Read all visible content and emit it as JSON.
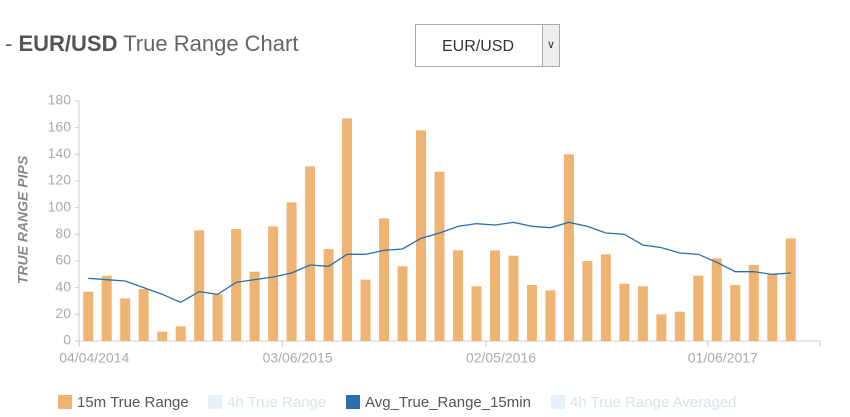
{
  "header": {
    "title_prefix": "-",
    "title_bold": "EUR/USD",
    "title_rest": "True Range Chart",
    "dropdown": "EUR/USD"
  },
  "chart_data": {
    "type": "bar-line",
    "y_label": "TRUE RANGE PIPS",
    "categories": [
      "04/04/2014",
      null,
      null,
      null,
      null,
      null,
      null,
      null,
      null,
      null,
      null,
      "03/06/2015",
      null,
      null,
      null,
      null,
      null,
      null,
      null,
      null,
      null,
      null,
      "02/05/2016",
      null,
      null,
      null,
      null,
      null,
      null,
      null,
      null,
      null,
      null,
      null,
      "01/06/2017",
      null,
      null,
      null,
      null
    ],
    "series": [
      {
        "name": "15m True Range",
        "type": "bar",
        "color": "#f0b472",
        "values": [
          37,
          49,
          32,
          39,
          7,
          11,
          83,
          35,
          84,
          52,
          86,
          104,
          131,
          69,
          167,
          46,
          92,
          56,
          158,
          127,
          68,
          41,
          68,
          64,
          42,
          38,
          140,
          60,
          65,
          43,
          41,
          20,
          22,
          49,
          62,
          42,
          57,
          50,
          77
        ]
      },
      {
        "name": "4h True Range",
        "type": "bar",
        "color": "#e8f1fa",
        "hidden": true
      },
      {
        "name": "Avg_True_Range_15min",
        "type": "line",
        "color": "#2a6fad",
        "values": [
          47,
          46,
          45,
          40,
          35,
          29,
          37,
          35,
          44,
          46,
          48,
          51,
          57,
          56,
          65,
          65,
          68,
          69,
          77,
          81,
          86,
          88,
          87,
          89,
          86,
          85,
          89,
          86,
          81,
          80,
          72,
          70,
          66,
          65,
          59,
          52,
          52,
          50,
          51
        ]
      },
      {
        "name": "4h True Range Averaged",
        "type": "line",
        "color": "#e8f1fa",
        "hidden": true
      }
    ],
    "ylim": [
      0,
      180
    ],
    "yticks": [
      0,
      20,
      40,
      60,
      80,
      100,
      120,
      140,
      160,
      180
    ]
  }
}
